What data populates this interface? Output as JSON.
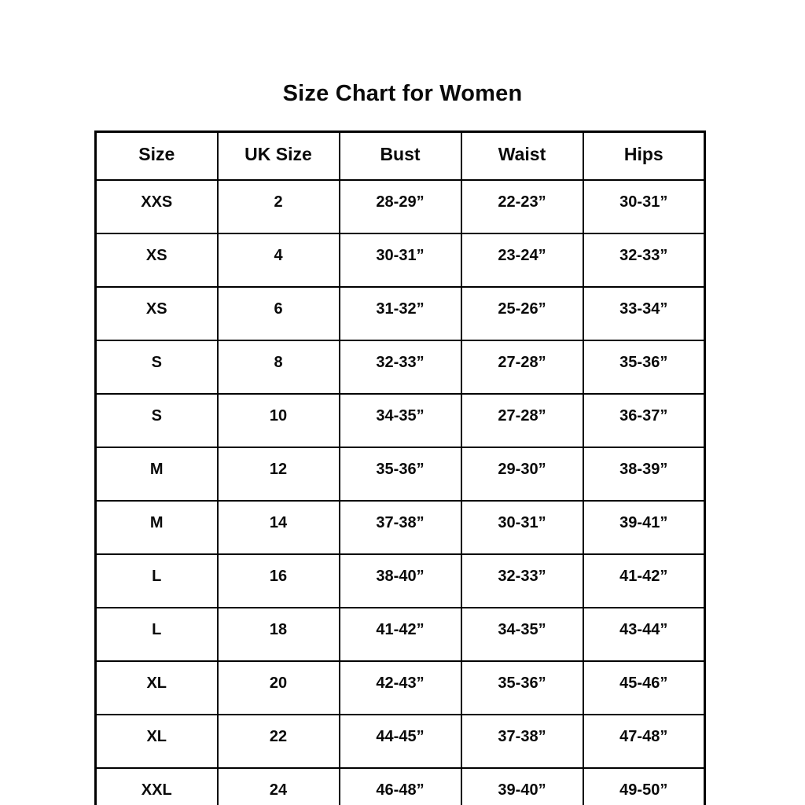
{
  "page": {
    "background_color": "#ffffff",
    "text_color": "#0a0a0a",
    "border_color": "#000000"
  },
  "title": "Size Chart for Women",
  "chart_data": {
    "type": "table",
    "title": "Size Chart for Women",
    "columns": [
      "Size",
      "UK Size",
      "Bust",
      "Waist",
      "Hips"
    ],
    "rows": [
      [
        "XXS",
        "2",
        "28-29”",
        "22-23”",
        "30-31”"
      ],
      [
        "XS",
        "4",
        "30-31”",
        "23-24”",
        "32-33”"
      ],
      [
        "XS",
        "6",
        "31-32”",
        "25-26”",
        "33-34”"
      ],
      [
        "S",
        "8",
        "32-33”",
        "27-28”",
        "35-36”"
      ],
      [
        "S",
        "10",
        "34-35”",
        "27-28”",
        "36-37”"
      ],
      [
        "M",
        "12",
        "35-36”",
        "29-30”",
        "38-39”"
      ],
      [
        "M",
        "14",
        "37-38”",
        "30-31”",
        "39-41”"
      ],
      [
        "L",
        "16",
        "38-40”",
        "32-33”",
        "41-42”"
      ],
      [
        "L",
        "18",
        "41-42”",
        "34-35”",
        "43-44”"
      ],
      [
        "XL",
        "20",
        "42-43”",
        "35-36”",
        "45-46”"
      ],
      [
        "XL",
        "22",
        "44-45”",
        "37-38”",
        "47-48”"
      ],
      [
        "XXL",
        "24",
        "46-48”",
        "39-40”",
        "49-50”"
      ]
    ],
    "layout": {
      "columns_equal_width": true,
      "grid": true,
      "header_row": true
    }
  }
}
